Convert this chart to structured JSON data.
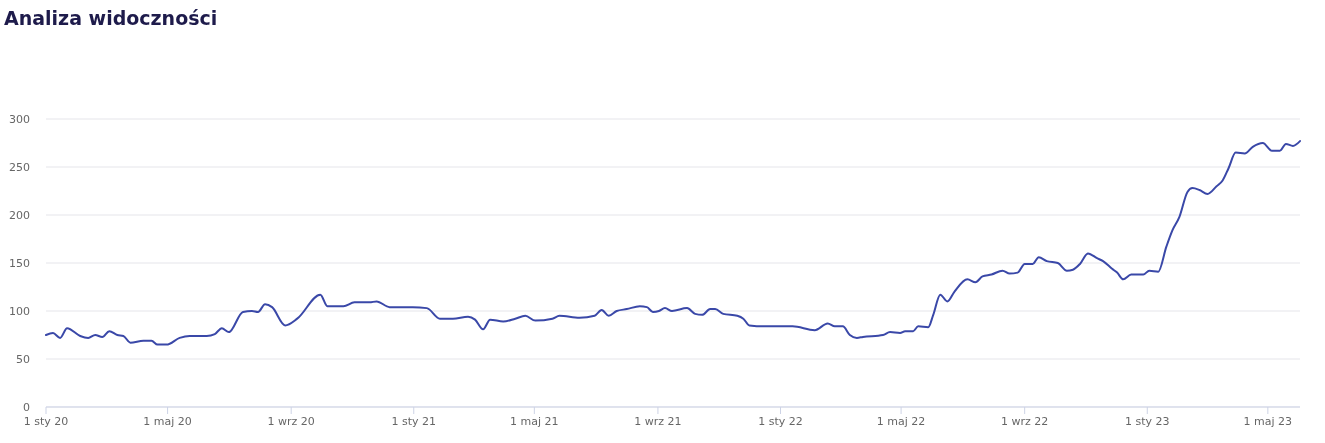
{
  "chart_data": {
    "type": "line",
    "title": "Analiza widoczności",
    "x": [
      "2020-01-01",
      "2020-01-08",
      "2020-01-15",
      "2020-01-22",
      "2020-02-04",
      "2020-02-12",
      "2020-02-19",
      "2020-02-26",
      "2020-03-04",
      "2020-03-12",
      "2020-03-18",
      "2020-03-25",
      "2020-04-07",
      "2020-04-15",
      "2020-04-21",
      "2020-04-30",
      "2020-05-13",
      "2020-05-23",
      "2020-06-09",
      "2020-06-17",
      "2020-06-24",
      "2020-07-01",
      "2020-07-15",
      "2020-07-24",
      "2020-07-30",
      "2020-08-06",
      "2020-08-13",
      "2020-08-26",
      "2020-09-07",
      "2020-09-30",
      "2020-10-07",
      "2020-10-23",
      "2020-11-03",
      "2020-11-18",
      "2020-11-25",
      "2020-12-08",
      "2020-12-31",
      "2021-01-14",
      "2021-01-27",
      "2021-02-09",
      "2021-02-24",
      "2021-03-03",
      "2021-03-11",
      "2021-03-18",
      "2021-03-31",
      "2021-04-12",
      "2021-04-22",
      "2021-05-02",
      "2021-05-19",
      "2021-05-26",
      "2021-06-15",
      "2021-06-30",
      "2021-07-07",
      "2021-07-14",
      "2021-07-22",
      "2021-08-01",
      "2021-08-14",
      "2021-08-21",
      "2021-08-27",
      "2021-09-02",
      "2021-09-08",
      "2021-09-15",
      "2021-09-30",
      "2021-10-08",
      "2021-10-15",
      "2021-10-23",
      "2021-10-28",
      "2021-11-05",
      "2021-11-19",
      "2021-11-25",
      "2021-12-01",
      "2021-12-18",
      "2021-12-31",
      "2022-01-13",
      "2022-02-04",
      "2022-02-17",
      "2022-02-24",
      "2022-03-04",
      "2022-03-11",
      "2022-03-18",
      "2022-03-24",
      "2022-04-13",
      "2022-04-20",
      "2022-04-30",
      "2022-05-05",
      "2022-05-13",
      "2022-05-18",
      "2022-05-28",
      "2022-06-02",
      "2022-06-09",
      "2022-06-16",
      "2022-06-23",
      "2022-07-06",
      "2022-07-14",
      "2022-07-21",
      "2022-07-30",
      "2022-08-10",
      "2022-08-17",
      "2022-08-25",
      "2022-09-01",
      "2022-09-09",
      "2022-09-15",
      "2022-09-23",
      "2022-10-04",
      "2022-10-13",
      "2022-10-19",
      "2022-10-26",
      "2022-11-03",
      "2022-11-12",
      "2022-11-18",
      "2022-11-27",
      "2022-12-02",
      "2022-12-08",
      "2022-12-16",
      "2022-12-28",
      "2023-01-03",
      "2023-01-12",
      "2023-01-20",
      "2023-01-26",
      "2023-02-02",
      "2023-02-10",
      "2023-02-15",
      "2023-02-22",
      "2023-03-02",
      "2023-03-11",
      "2023-03-17",
      "2023-03-23",
      "2023-03-30",
      "2023-04-08",
      "2023-04-16",
      "2023-04-26",
      "2023-05-05",
      "2023-05-13",
      "2023-05-19",
      "2023-05-26",
      "2023-06-02"
    ],
    "series": [
      {
        "color": "#3a48a8",
        "values": [
          75,
          77,
          72,
          82,
          74,
          72,
          75,
          73,
          79,
          75,
          74,
          67,
          69,
          69,
          65,
          65,
          72,
          74,
          74,
          76,
          82,
          78,
          99,
          100,
          99,
          107,
          104,
          85,
          92,
          117,
          105,
          105,
          109,
          109,
          110,
          104,
          104,
          103,
          92,
          92,
          94,
          91,
          81,
          91,
          89,
          92,
          95,
          90,
          92,
          95,
          93,
          95,
          101,
          95,
          100,
          102,
          105,
          104,
          99,
          100,
          103,
          100,
          103,
          97,
          96,
          102,
          102,
          97,
          95,
          92,
          85,
          84,
          84,
          84,
          80,
          87,
          84,
          84,
          75,
          72,
          73,
          75,
          78,
          77,
          79,
          79,
          84,
          83,
          96,
          117,
          110,
          120,
          133,
          130,
          136,
          138,
          142,
          139,
          140,
          149,
          149,
          156,
          152,
          150,
          142,
          143,
          149,
          160,
          155,
          152,
          144,
          140,
          133,
          138,
          138,
          142,
          141,
          167,
          184,
          198,
          224,
          228,
          226,
          222,
          230,
          236,
          249,
          265,
          264,
          271,
          275,
          267,
          267,
          274,
          272,
          277
        ]
      }
    ],
    "xlim": [
      "2020-01-01",
      "2023-06-02"
    ],
    "xticks": [
      {
        "value": "2020-01-01",
        "label": "1 sty 20"
      },
      {
        "value": "2020-05-01",
        "label": "1 maj 20"
      },
      {
        "value": "2020-09-01",
        "label": "1 wrz 20"
      },
      {
        "value": "2021-01-01",
        "label": "1 sty 21"
      },
      {
        "value": "2021-05-01",
        "label": "1 maj 21"
      },
      {
        "value": "2021-09-01",
        "label": "1 wrz 21"
      },
      {
        "value": "2022-01-01",
        "label": "1 sty 22"
      },
      {
        "value": "2022-05-01",
        "label": "1 maj 22"
      },
      {
        "value": "2022-09-01",
        "label": "1 wrz 22"
      },
      {
        "value": "2023-01-01",
        "label": "1 sty 23"
      },
      {
        "value": "2023-05-01",
        "label": "1 maj 23"
      }
    ],
    "ylim": [
      0,
      300
    ],
    "yticks": [
      0,
      50,
      100,
      150,
      200,
      250,
      300
    ],
    "grid": "y"
  }
}
